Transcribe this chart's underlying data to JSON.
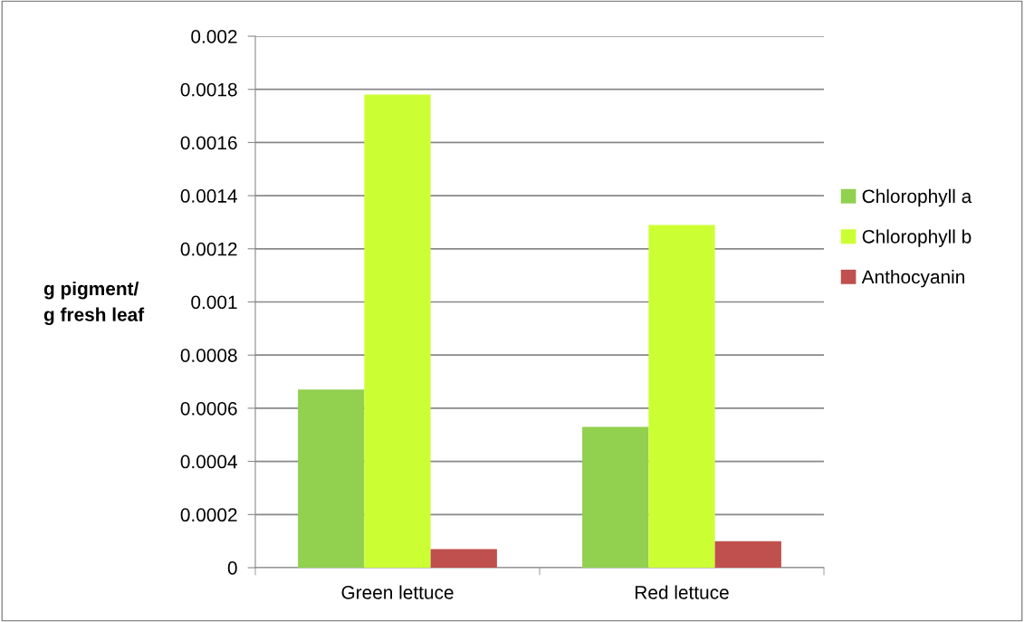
{
  "chart_data": {
    "type": "bar",
    "ylabel": "g pigment/\ng fresh leaf",
    "categories": [
      "Green lettuce",
      "Red lettuce"
    ],
    "series": [
      {
        "name": "Chlorophyll a",
        "color": "#92d050",
        "values": [
          0.00067,
          0.00053
        ]
      },
      {
        "name": "Chlorophyll b",
        "color": "#ccff33",
        "values": [
          0.00178,
          0.00129
        ]
      },
      {
        "name": "Anthocyanin",
        "color": "#c0504d",
        "values": [
          7e-05,
          0.0001
        ]
      }
    ],
    "ylim": [
      0,
      0.002
    ],
    "yticks": [
      0,
      0.0002,
      0.0004,
      0.0006,
      0.0008,
      0.001,
      {
        "value": 0.0012,
        "label": "0.0012"
      },
      0.0014,
      0.0016,
      0.0018,
      0.002
    ],
    "grid": "y",
    "legend": "right"
  }
}
